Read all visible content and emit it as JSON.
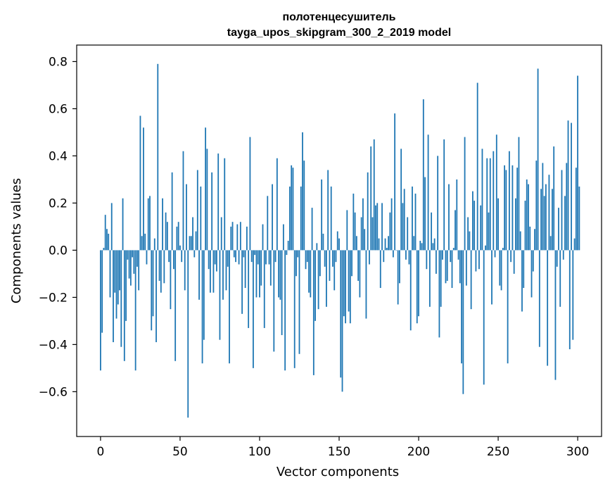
{
  "chart_data": {
    "type": "bar",
    "title": "полотенцесушитель",
    "subtitle": "tayga_upos_skipgram_300_2_2019 model",
    "xlabel": "Vector components",
    "ylabel": "Components values",
    "xlim": [
      -15,
      315
    ],
    "ylim": [
      -0.79,
      0.87
    ],
    "xticks": [
      0,
      50,
      100,
      150,
      200,
      250,
      300
    ],
    "xtick_labels": [
      "0",
      "50",
      "100",
      "150",
      "200",
      "250",
      "300"
    ],
    "yticks": [
      -0.6,
      -0.4,
      -0.2,
      0.0,
      0.2,
      0.4,
      0.6,
      0.8
    ],
    "ytick_labels": [
      "−0.6",
      "−0.4",
      "−0.2",
      "0.0",
      "0.2",
      "0.4",
      "0.6",
      "0.8"
    ],
    "bar_color": "#1f77b4",
    "grid": false,
    "values": [
      -0.51,
      -0.35,
      0.01,
      0.15,
      0.09,
      0.07,
      -0.2,
      0.2,
      -0.39,
      -0.18,
      -0.29,
      -0.23,
      -0.17,
      -0.41,
      0.22,
      -0.47,
      -0.3,
      -0.04,
      -0.12,
      -0.15,
      -0.03,
      -0.1,
      -0.51,
      -0.07,
      -0.17,
      0.57,
      0.06,
      0.52,
      0.07,
      -0.06,
      0.22,
      0.23,
      -0.34,
      -0.28,
      0.05,
      -0.39,
      0.79,
      -0.13,
      -0.18,
      0.22,
      -0.14,
      0.16,
      0.12,
      -0.05,
      -0.25,
      0.33,
      -0.08,
      -0.47,
      0.1,
      0.12,
      0.02,
      -0.05,
      0.42,
      -0.17,
      0.28,
      -0.71,
      0.06,
      0.06,
      0.14,
      -0.03,
      0.08,
      0.34,
      -0.21,
      0.27,
      -0.48,
      -0.38,
      0.52,
      0.43,
      -0.08,
      -0.18,
      0.33,
      -0.18,
      -0.06,
      -0.09,
      0.41,
      -0.38,
      0.14,
      -0.21,
      0.39,
      -0.17,
      -0.07,
      -0.48,
      0.1,
      0.12,
      -0.03,
      -0.05,
      0.11,
      -0.06,
      0.12,
      -0.27,
      -0.03,
      -0.16,
      0.1,
      -0.33,
      0.48,
      -0.05,
      -0.5,
      -0.02,
      -0.2,
      -0.06,
      -0.2,
      -0.15,
      0.11,
      -0.33,
      -0.06,
      0.23,
      -0.06,
      -0.15,
      0.28,
      -0.43,
      -0.05,
      0.39,
      -0.2,
      -0.21,
      -0.36,
      0.11,
      -0.51,
      -0.02,
      0.04,
      0.27,
      0.36,
      0.35,
      -0.5,
      -0.11,
      -0.03,
      -0.44,
      0.27,
      0.5,
      0.38,
      -0.08,
      -0.05,
      -0.18,
      -0.2,
      0.18,
      -0.53,
      -0.3,
      0.03,
      -0.25,
      -0.11,
      0.3,
      0.07,
      -0.07,
      -0.24,
      0.34,
      -0.13,
      0.27,
      -0.07,
      -0.17,
      -0.05,
      0.08,
      0.05,
      -0.54,
      -0.6,
      -0.28,
      -0.31,
      0.17,
      -0.26,
      -0.31,
      -0.11,
      0.24,
      0.16,
      0.06,
      -0.13,
      -0.2,
      0.14,
      0.22,
      0.09,
      -0.29,
      0.33,
      -0.06,
      0.44,
      0.14,
      0.47,
      0.19,
      0.2,
      0.05,
      -0.16,
      0.2,
      -0.05,
      0.05,
      0.01,
      0.06,
      0.16,
      0.22,
      -0.03,
      0.58,
      0.0,
      -0.23,
      -0.14,
      0.43,
      0.2,
      0.26,
      -0.04,
      0.14,
      -0.06,
      -0.34,
      0.27,
      0.06,
      0.24,
      -0.31,
      -0.28,
      0.04,
      0.03,
      0.64,
      0.31,
      -0.08,
      0.49,
      -0.24,
      0.16,
      0.03,
      0.05,
      -0.1,
      0.4,
      -0.37,
      -0.24,
      -0.04,
      0.47,
      -0.14,
      -0.13,
      0.28,
      -0.05,
      -0.16,
      0.01,
      0.17,
      0.3,
      -0.04,
      -0.14,
      -0.48,
      -0.61,
      0.48,
      -0.15,
      0.14,
      0.08,
      -0.25,
      0.25,
      0.21,
      -0.09,
      0.71,
      -0.08,
      0.19,
      0.43,
      -0.57,
      0.02,
      0.39,
      0.16,
      0.39,
      -0.23,
      0.42,
      -0.03,
      0.49,
      0.22,
      -0.15,
      -0.17,
      0.01,
      0.36,
      0.34,
      -0.48,
      0.42,
      -0.05,
      0.36,
      -0.1,
      0.22,
      0.35,
      0.48,
      0.08,
      -0.26,
      -0.16,
      0.21,
      0.3,
      0.28,
      0.1,
      -0.2,
      -0.09,
      0.09,
      0.38,
      0.77,
      -0.41,
      0.26,
      0.37,
      0.23,
      0.28,
      -0.49,
      0.32,
      0.06,
      0.26,
      0.44,
      -0.55,
      -0.07,
      0.18,
      -0.24,
      0.34,
      -0.04,
      0.23,
      0.37,
      0.55,
      -0.42,
      0.54,
      -0.38,
      0.05,
      0.35,
      0.74,
      0.27
    ]
  }
}
